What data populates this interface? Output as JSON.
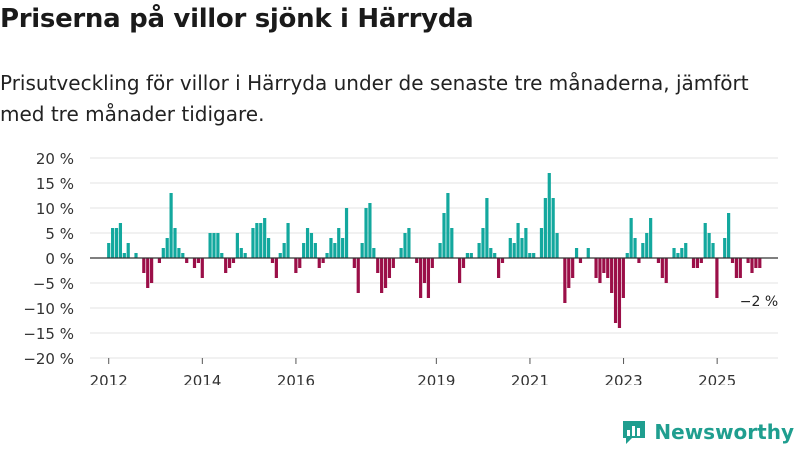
{
  "header": {
    "title": "Priserna på villor sjönk i Härryda",
    "subtitle": "Prisutveckling för villor i Härryda under de senaste tre månaderna, jämfört med tre månader tidigare."
  },
  "brand": {
    "name": "Newsworthy"
  },
  "colors": {
    "positive": "#13a89e",
    "negative": "#9b0f48",
    "grid": "#e3e3e3",
    "zero": "#333333"
  },
  "chart_data": {
    "type": "bar",
    "title": "Priserna på villor sjönk i Härryda",
    "ylim": [
      -20,
      20
    ],
    "yticks": [
      20,
      15,
      10,
      5,
      0,
      -5,
      -10,
      -15,
      -20
    ],
    "ytick_labels": [
      "20 %",
      "15 %",
      "10 %",
      "5 %",
      "0 %",
      "−5 %",
      "−10 %",
      "−15 %",
      "−20 %"
    ],
    "xlim": [
      2011.6,
      2026.3
    ],
    "xticks": [
      2012,
      2014,
      2016,
      2019,
      2021,
      2023,
      2025
    ],
    "xtick_labels": [
      "2012",
      "2014",
      "2016",
      "2019",
      "2021",
      "2023",
      "2025"
    ],
    "start": 2012.0,
    "step": 0.0833,
    "values": [
      3,
      6,
      6,
      7,
      1,
      3,
      0,
      1,
      0,
      -3,
      -6,
      -5,
      0,
      -1,
      2,
      4,
      13,
      6,
      2,
      1,
      -1,
      0,
      -2,
      -1,
      -4,
      0,
      5,
      5,
      5,
      1,
      -3,
      -2,
      -1,
      5,
      2,
      1,
      0,
      6,
      7,
      7,
      8,
      4,
      -1,
      -4,
      1,
      3,
      7,
      0,
      -3,
      -2,
      3,
      6,
      5,
      3,
      -2,
      -1,
      1,
      4,
      3,
      6,
      4,
      10,
      0,
      -2,
      -7,
      3,
      10,
      11,
      2,
      -3,
      -7,
      -6,
      -4,
      -2,
      0,
      2,
      5,
      6,
      0,
      -1,
      -8,
      -5,
      -8,
      -2,
      0,
      3,
      9,
      13,
      6,
      0,
      -5,
      -2,
      1,
      1,
      0,
      3,
      6,
      12,
      2,
      1,
      -4,
      -1,
      0,
      4,
      3,
      7,
      4,
      6,
      1,
      1,
      0,
      6,
      12,
      17,
      12,
      5,
      0,
      -9,
      -6,
      -4,
      2,
      -1,
      0,
      2,
      0,
      -4,
      -5,
      -3,
      -4,
      -7,
      -13,
      -14,
      -8,
      1,
      8,
      4,
      -1,
      3,
      5,
      8,
      0,
      -1,
      -4,
      -5,
      0,
      2,
      1,
      2,
      3,
      0,
      -2,
      -2,
      -1,
      7,
      5,
      3,
      -8,
      0,
      4,
      9,
      -1,
      -4,
      -4,
      0,
      -1,
      -3,
      -2,
      -2
    ],
    "annotation": {
      "text": "−2 %"
    }
  }
}
